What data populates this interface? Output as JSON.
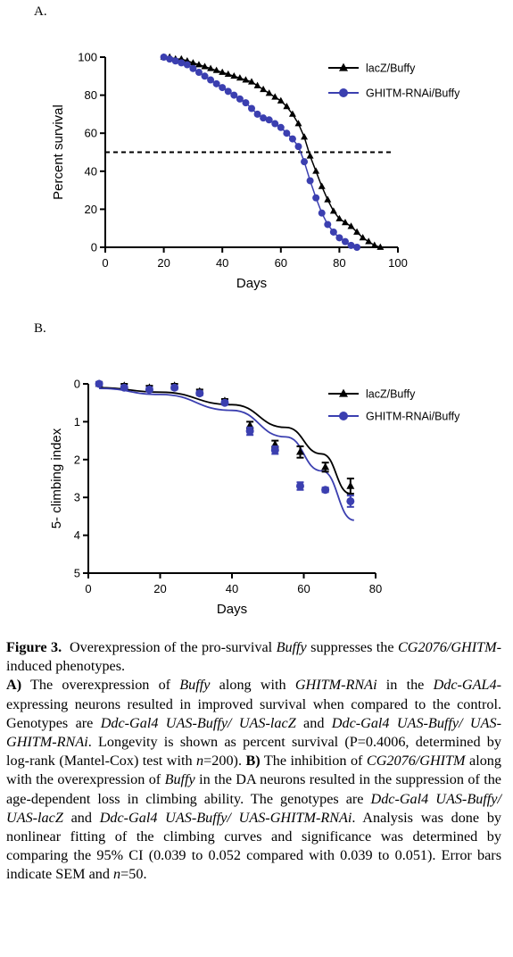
{
  "figure_a": {
    "panel_label": "A.",
    "chart_data": {
      "type": "line",
      "xlabel": "Days",
      "ylabel": "Percent survival",
      "xlim": [
        0,
        100
      ],
      "ylim": [
        0,
        100
      ],
      "xticks": [
        0,
        20,
        40,
        60,
        80,
        100
      ],
      "yticks": [
        0,
        20,
        40,
        60,
        80,
        100
      ],
      "legend_position": "top-right",
      "reference_line": {
        "y": 50,
        "style": "dashed"
      },
      "series": [
        {
          "name": "lacZ/Buffy",
          "marker": "triangle",
          "color": "#000000",
          "x": [
            20,
            22,
            24,
            26,
            28,
            30,
            32,
            34,
            36,
            38,
            40,
            42,
            44,
            46,
            48,
            50,
            52,
            54,
            56,
            58,
            60,
            62,
            64,
            66,
            68,
            70,
            72,
            74,
            76,
            78,
            80,
            82,
            84,
            86,
            88,
            90,
            92,
            94
          ],
          "y": [
            100,
            100,
            99,
            99,
            98,
            97,
            96,
            95,
            94,
            93,
            92,
            91,
            90,
            89,
            88,
            87,
            85,
            83,
            81,
            79,
            77,
            74,
            70,
            65,
            58,
            48,
            40,
            32,
            25,
            19,
            15,
            13,
            11,
            8,
            5,
            3,
            1,
            0
          ]
        },
        {
          "name": "GHITM-RNAi/Buffy",
          "marker": "circle",
          "color": "#3b3fb0",
          "x": [
            20,
            22,
            24,
            26,
            28,
            30,
            32,
            34,
            36,
            38,
            40,
            42,
            44,
            46,
            48,
            50,
            52,
            54,
            56,
            58,
            60,
            62,
            64,
            66,
            68,
            70,
            72,
            74,
            76,
            78,
            80,
            82,
            84,
            86
          ],
          "y": [
            100,
            99,
            98,
            97,
            96,
            94,
            92,
            90,
            88,
            86,
            84,
            82,
            80,
            78,
            76,
            73,
            70,
            68,
            67,
            65,
            63,
            60,
            57,
            53,
            45,
            35,
            26,
            18,
            12,
            8,
            5,
            3,
            1,
            0
          ]
        }
      ]
    }
  },
  "figure_b": {
    "panel_label": "B.",
    "chart_data": {
      "type": "scatter",
      "xlabel": "Days",
      "ylabel": "5- climbing index",
      "xlim": [
        0,
        80
      ],
      "ylim": [
        0,
        5
      ],
      "y_inverted": true,
      "xticks": [
        0,
        20,
        40,
        60,
        80
      ],
      "yticks": [
        0,
        1,
        2,
        3,
        4,
        5
      ],
      "legend_position": "top-right",
      "series": [
        {
          "name": "lacZ/Buffy",
          "marker": "triangle",
          "color": "#000000",
          "x": [
            3,
            10,
            17,
            24,
            31,
            38,
            45,
            52,
            59,
            66,
            73
          ],
          "y": [
            0.0,
            0.05,
            0.1,
            0.05,
            0.2,
            0.45,
            1.1,
            1.6,
            1.8,
            2.2,
            2.7
          ],
          "err": [
            0.05,
            0.05,
            0.05,
            0.05,
            0.05,
            0.05,
            0.1,
            0.1,
            0.15,
            0.12,
            0.2
          ]
        },
        {
          "name": "GHITM-RNAi/Buffy",
          "marker": "circle",
          "color": "#3b3fb0",
          "x": [
            3,
            10,
            17,
            24,
            31,
            38,
            45,
            52,
            59,
            66,
            73
          ],
          "y": [
            0.0,
            0.1,
            0.15,
            0.1,
            0.25,
            0.5,
            1.25,
            1.75,
            2.7,
            2.8,
            3.1
          ],
          "err": [
            0.05,
            0.05,
            0.05,
            0.05,
            0.05,
            0.05,
            0.1,
            0.1,
            0.1,
            0.06,
            0.15
          ]
        }
      ],
      "fits": [
        {
          "name": "lacZ/Buffy",
          "x": [
            3,
            20,
            40,
            55,
            65,
            73
          ],
          "y": [
            0.1,
            0.22,
            0.55,
            1.15,
            1.85,
            2.9
          ]
        },
        {
          "name": "GHITM-RNAi/Buffy",
          "x": [
            3,
            20,
            40,
            55,
            65,
            74
          ],
          "y": [
            0.12,
            0.28,
            0.7,
            1.4,
            2.3,
            3.6
          ]
        }
      ]
    }
  },
  "caption": {
    "title_bold": "Figure 3.",
    "title_text_1": "Overexpression of the pro-survival ",
    "title_italic_1": "Buffy",
    "title_text_2": " suppresses the ",
    "title_italic_2": "CG2076/GHITM",
    "title_text_3": "-induced phenotypes.",
    "a_label": "A)",
    "a_t1": " The overexpression of ",
    "a_i1": "Buffy",
    "a_t2": " along with ",
    "a_i2": "GHITM-RNAi",
    "a_t3": " in the ",
    "a_i3": "Ddc-GAL4",
    "a_t4": "-expressing neurons resulted in improved survival when compared to the control. Genotypes are ",
    "a_i4": "Ddc-Gal4 UAS-Buffy/ UAS-lacZ",
    "a_t5": " and ",
    "a_i5": "Ddc-Gal4 UAS-Buffy/ UAS-GHITM-RNAi",
    "a_t6": ". Longevity is shown as percent survival (P=0.4006, determined by log-rank (Mantel-Cox) test with ",
    "a_i6": "n",
    "a_t7": "=200). ",
    "b_label": "B)",
    "b_t1": " The inhibition of ",
    "b_i1": "CG2076/GHITM",
    "b_t2": " along with the overexpression of ",
    "b_i2": "Buffy",
    "b_t3": " in the DA neurons resulted in the suppression of the age-dependent loss in climbing ability. The genotypes are ",
    "b_i3": "Ddc-Gal4 UAS-Buffy/ UAS-lacZ",
    "b_t4": " and ",
    "b_i4": "Ddc-Gal4 UAS-Buffy/ UAS-GHITM-RNAi",
    "b_t5": ". Analysis was done by nonlinear fitting of the climbing curves and significance was determined by comparing the 95% CI (0.039 to 0.052 compared with 0.039 to 0.051). Error bars indicate SEM and ",
    "b_i5": "n",
    "b_t6": "=50."
  }
}
